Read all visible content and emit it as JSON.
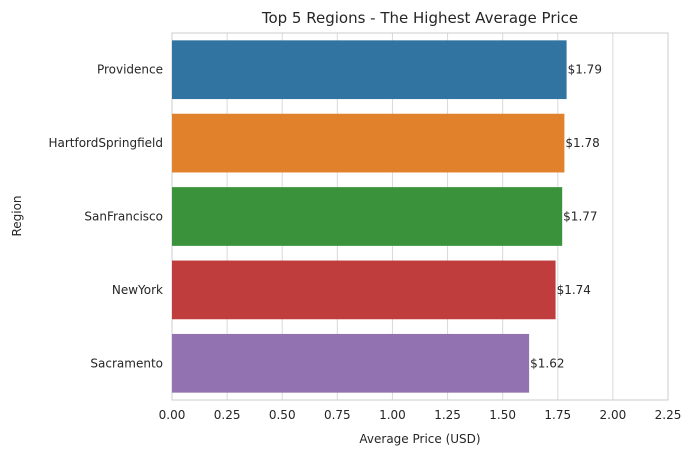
{
  "chart_data": {
    "type": "bar",
    "orientation": "horizontal",
    "title": "Top 5 Regions - The Highest Average Price",
    "xlabel": "Average Price (USD)",
    "ylabel": "Region",
    "categories": [
      "Providence",
      "HartfordSpringfield",
      "SanFrancisco",
      "NewYork",
      "Sacramento"
    ],
    "values": [
      1.79,
      1.78,
      1.77,
      1.74,
      1.62
    ],
    "data_labels": [
      "$1.79",
      "$1.78",
      "$1.77",
      "$1.74",
      "$1.62"
    ],
    "xlim": [
      0,
      2.25
    ],
    "xticks": [
      0.0,
      0.25,
      0.5,
      0.75,
      1.0,
      1.25,
      1.5,
      1.75,
      2.0,
      2.25
    ],
    "xtick_labels": [
      "0.00",
      "0.25",
      "0.50",
      "0.75",
      "1.00",
      "1.25",
      "1.50",
      "1.75",
      "2.00",
      "2.25"
    ],
    "grid": true,
    "colors": [
      "#3274a1",
      "#e1812c",
      "#3a923a",
      "#c03d3e",
      "#9372b2"
    ],
    "grid_color": "#d9d9d9",
    "spine_color": "#cccccc",
    "text_color": "#262626"
  }
}
